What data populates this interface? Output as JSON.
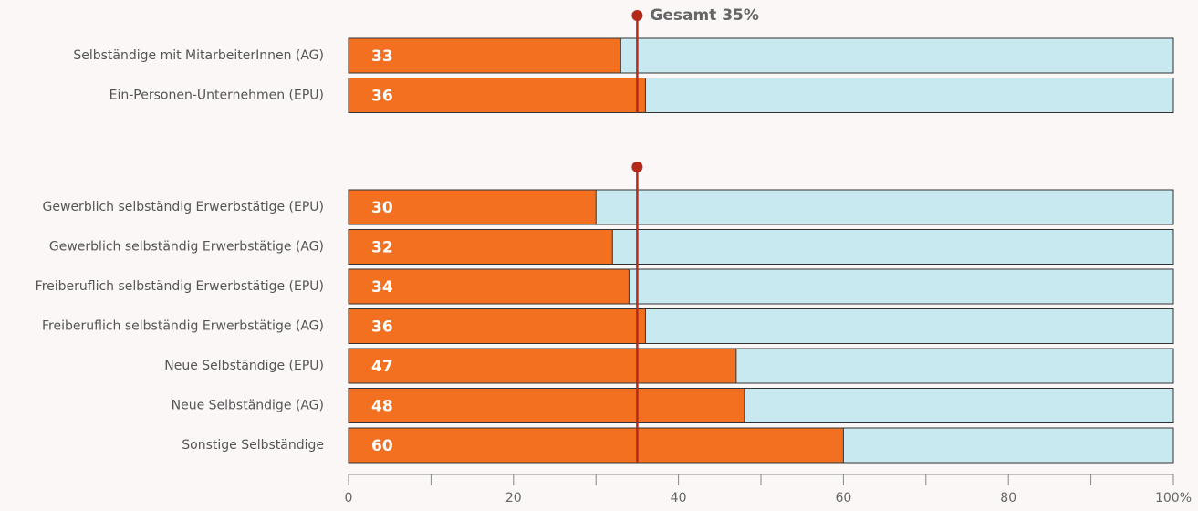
{
  "chart_data": [
    {
      "type": "hbar",
      "categories": [
        "Selbständige mit MitarbeiterInnen (AG)",
        "Ein-Personen-Unternehmen (EPU)"
      ],
      "values": [
        33,
        36
      ],
      "color": "#f37021",
      "track_color": "#c9e9f1",
      "xlim": [
        0,
        100
      ],
      "reference_line": 35,
      "reference_color": "#b32a1c",
      "annotation": "Gesamt 35%"
    },
    {
      "type": "hbar",
      "categories": [
        "Gewerblich selbständig Erwerbstätige (EPU)",
        "Gewerblich selbständig Erwerbstätige (AG)",
        "Freiberuflich selbständig Erwerbstätige (EPU)",
        "Freiberuflich selbständig Erwerbstätige (AG)",
        "Neue Selbständige (EPU)",
        "Neue Selbständige (AG)",
        "Sonstige Selbständige"
      ],
      "values": [
        30,
        32,
        34,
        36,
        47,
        48,
        60
      ],
      "color": "#f37021",
      "track_color": "#c9e9f1",
      "xlim": [
        0,
        100
      ],
      "xticks": [
        0,
        20,
        40,
        60,
        80,
        {
          "value": 100,
          "label": "100%"
        }
      ],
      "xminorticks": [
        10,
        30,
        50,
        70,
        90
      ],
      "reference_line": 35,
      "reference_color": "#b32a1c"
    }
  ]
}
